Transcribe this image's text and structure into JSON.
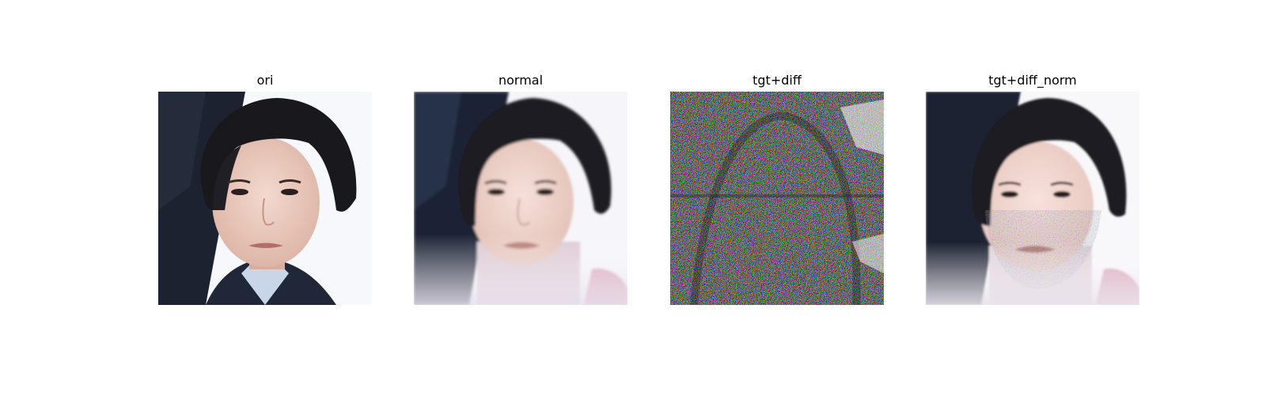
{
  "panels": [
    {
      "title": "ori"
    },
    {
      "title": "normal"
    },
    {
      "title": "tgt+diff"
    },
    {
      "title": "tgt+diff_norm"
    }
  ]
}
